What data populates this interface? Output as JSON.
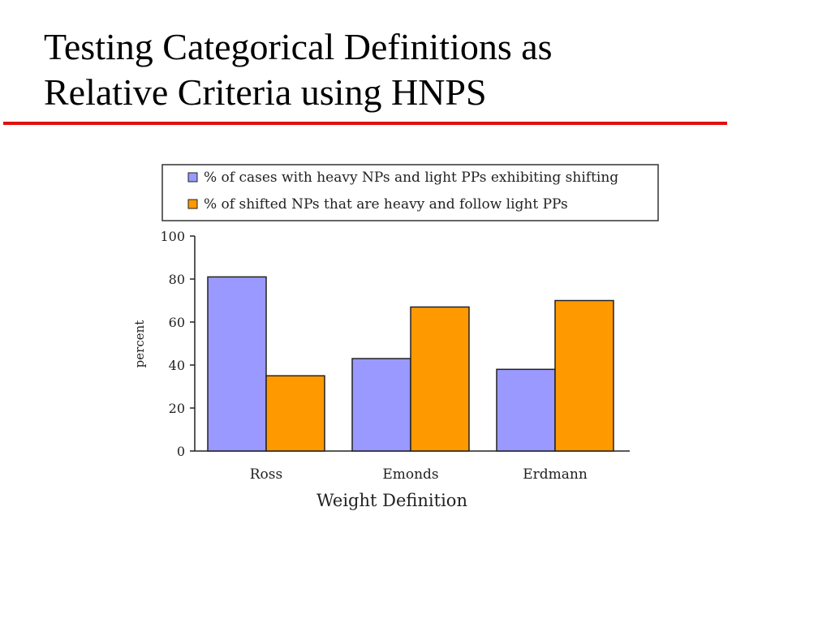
{
  "slide": {
    "title_line1": "Testing Categorical Definitions as",
    "title_line2": "Relative Criteria using HNPS",
    "rule_color": "#e01010"
  },
  "chart_data": {
    "type": "bar",
    "title": "",
    "xlabel": "Weight Definition",
    "ylabel": "percent",
    "ylim": [
      0,
      100
    ],
    "yticks": [
      0,
      20,
      40,
      60,
      80,
      100
    ],
    "grid": false,
    "legend_position": "top",
    "categories": [
      "Ross",
      "Emonds",
      "Erdmann"
    ],
    "series": [
      {
        "name": "% of cases with heavy NPs and light PPs exhibiting shifting",
        "color": "#9999ff",
        "values": [
          81,
          43,
          38
        ]
      },
      {
        "name": "% of shifted NPs that are heavy and follow light PPs",
        "color": "#ff9900",
        "values": [
          35,
          67,
          70
        ]
      }
    ]
  }
}
